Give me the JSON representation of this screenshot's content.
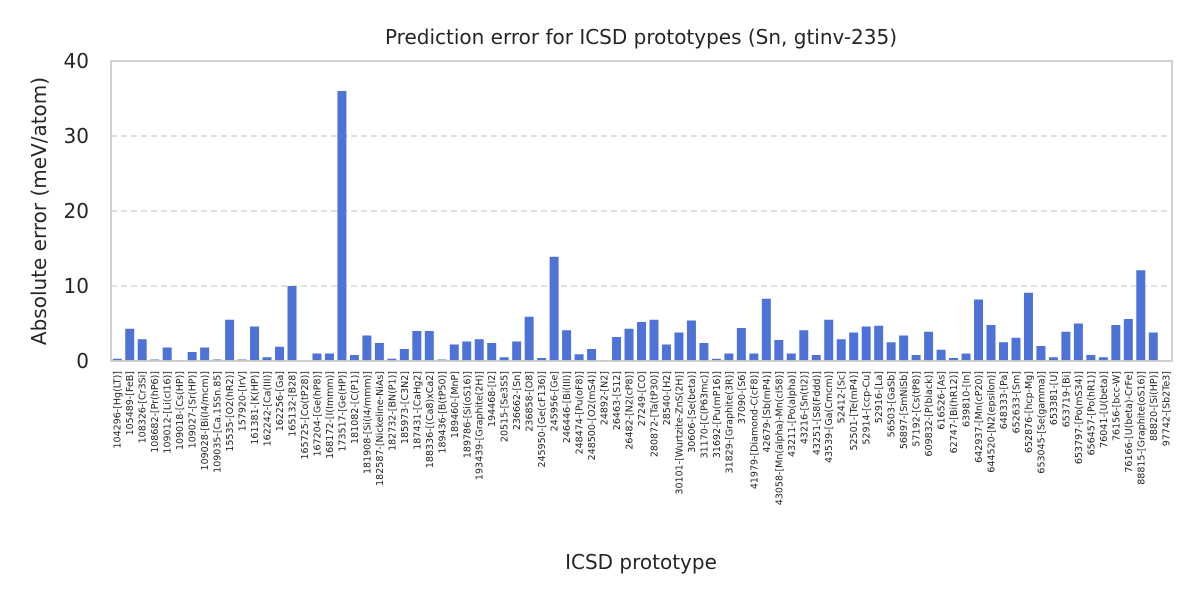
{
  "chart_data": {
    "type": "bar",
    "title": "Prediction error for ICSD prototypes (Sn, gtinv-235)",
    "xlabel": "ICSD prototype",
    "ylabel": "Absolute error (meV/atom)",
    "ylim": [
      0,
      40
    ],
    "yticks": [
      0,
      10,
      20,
      30,
      40
    ],
    "grid": "y-dashed",
    "bar_color": "#4f72d6",
    "categories": [
      "104296-[Hg(LT)]",
      "105489-[FeB]",
      "108326-[Cr3Si]",
      "108682-[Pr(hP6)]",
      "109012-[Li(cI16)]",
      "109018-[Cs(HP)]",
      "109027-[Sr(HP)]",
      "109028-[Bi(I4/mcm)]",
      "109035-[Ca.15Sn.85]",
      "15535-[O2(hR2)]",
      "157920-[IrV]",
      "161381-[K(HP)]",
      "162242-[Ca(III)]",
      "162256-[Ga]",
      "165132-[B28]",
      "165725-[Co(tP28)]",
      "167204-[Ge(hP8)]",
      "168172-[I(Immm)]",
      "173517-[Ge(HP)]",
      "181082-[C(P1)]",
      "181908-[Si(I4/mmm)]",
      "182587-[Nickeline-NiAs]",
      "182732-[BN(P1)]",
      "185973-[C3N2]",
      "187431-[CaHg2]",
      "188336-[(Ca8)xCa2]",
      "189436-[B(tP50)]",
      "189460-[MnP]",
      "189786-[Si(oS16)]",
      "193439-[Graphite(2H)]",
      "194468-[I2]",
      "20515-[Se3S5]",
      "236662-[Sn]",
      "236858-[O8]",
      "245950-[Ge(cF136)]",
      "245956-[Ge]",
      "246446-[Bi(III)]",
      "248474-[Pu(oF8)]",
      "248500-[O2(mS4)]",
      "24892-[N2]",
      "26463-[S12]",
      "26482-[N2(cP8)]",
      "27249-[CO]",
      "280872-[Ta(tP30)]",
      "28540-[H2]",
      "30101-[Wurtzite-ZnS(2H)]",
      "30606-[Se(beta)]",
      "31170-[C(P63mc)]",
      "31692-[Pu(mP16)]",
      "31829-[Graphite(3R)]",
      "37090-[S6]",
      "41979-[Diamond-C(cF8)]",
      "42679-[Sb(mP4)]",
      "43058-[Mn(alpha)-Mn(cI58)]",
      "43211-[Po(alpha)]",
      "43216-[Sn(tI2)]",
      "43251-[S8(Fddd)]",
      "43539-[Ga(Cmcm)]",
      "52412-[Sc]",
      "52501-[Te(mP4)]",
      "52914-[ccp-Cu]",
      "52916-[La]",
      "56503-[GaSb]",
      "56897-[SmNiSb]",
      "57192-[Cs(tP8)]",
      "609832-[P(black)]",
      "616526-[As]",
      "62747-[Bi(hR12)]",
      "639810-[In]",
      "642937-[Mn(cP20)]",
      "644520-[N2(epsilon)]",
      "648333-[Pa]",
      "652633-[Sm]",
      "652876-[hcp-Mg]",
      "653045-[Se(gamma)]",
      "653381-[U]",
      "653719-[Bi]",
      "653797-[Po(mS34)]",
      "656457-[Po(hR1)]",
      "76041-[U(beta)]",
      "76156-[bcc-W]",
      "76166-[U(beta)-CrFe]",
      "88815-[Graphite(oS16)]",
      "88820-[Si(HP)]",
      "97742-[Sb2Te3]"
    ],
    "values": [
      0.3,
      4.3,
      2.9,
      0.2,
      1.8,
      0.1,
      1.2,
      1.8,
      0.2,
      5.5,
      0.2,
      4.6,
      0.5,
      1.9,
      10.0,
      0.1,
      1.0,
      1.0,
      36.0,
      0.8,
      3.4,
      2.4,
      0.3,
      1.6,
      4.0,
      4.0,
      0.2,
      2.2,
      2.6,
      2.9,
      2.4,
      0.5,
      2.6,
      5.9,
      0.4,
      13.9,
      4.1,
      0.9,
      1.6,
      0.1,
      3.2,
      4.3,
      5.2,
      5.5,
      2.2,
      3.8,
      5.4,
      2.4,
      0.3,
      1.0,
      4.4,
      1.0,
      8.3,
      2.8,
      1.0,
      4.1,
      0.8,
      5.5,
      2.9,
      3.8,
      4.6,
      4.7,
      2.5,
      3.4,
      0.8,
      3.9,
      1.5,
      0.4,
      1.0,
      8.2,
      4.8,
      2.5,
      3.1,
      9.1,
      2.0,
      0.5,
      3.9,
      5.0,
      0.8,
      0.5,
      4.8,
      5.6,
      12.1,
      3.8,
      0.1
    ]
  }
}
